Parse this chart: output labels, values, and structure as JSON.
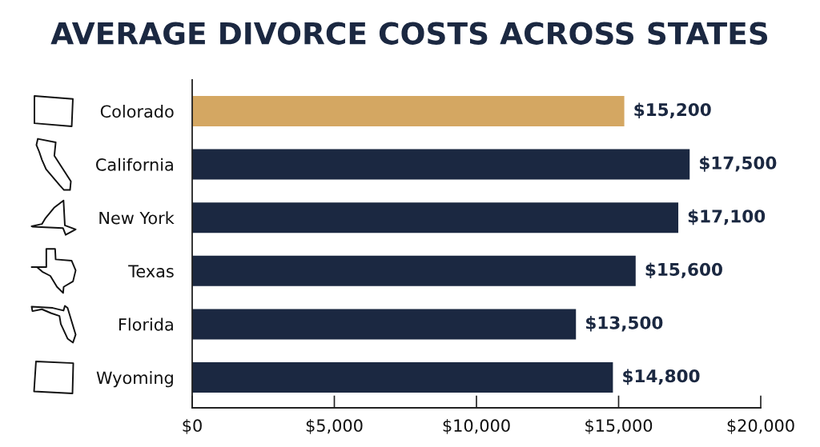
{
  "chart_data": {
    "type": "bar",
    "orientation": "horizontal",
    "title": "AVERAGE DIVORCE COSTS ACROSS STATES",
    "categories": [
      "Colorado",
      "California",
      "New York",
      "Texas",
      "Florida",
      "Wyoming"
    ],
    "values": [
      15200,
      17500,
      17100,
      15600,
      13500,
      14800
    ],
    "colors": [
      "#d4a762",
      "#1b2841",
      "#1b2841",
      "#1b2841",
      "#1b2841",
      "#1b2841"
    ],
    "value_labels": [
      "$15,200",
      "$17,500",
      "$17,100",
      "$15,600",
      "$13,500",
      "$14,800"
    ],
    "xlim": [
      0,
      20000
    ],
    "xticks": [
      {
        "value": 0,
        "label": "$0"
      },
      {
        "value": 5000,
        "label": "$5,000"
      },
      {
        "value": 10000,
        "label": "$10,000"
      },
      {
        "value": 15000,
        "label": "$15,000"
      },
      {
        "value": 20000,
        "label": "$20,000"
      }
    ],
    "grid": false
  }
}
